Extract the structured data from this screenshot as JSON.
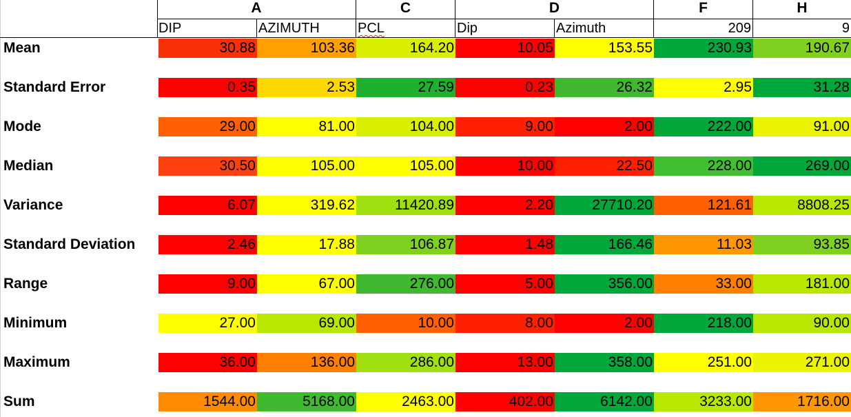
{
  "groups": [
    "A",
    "C",
    "D",
    "F",
    "H"
  ],
  "columns": [
    "DIP",
    "AZIMUTH",
    "PCL",
    "Dip",
    "Azimuth",
    "209",
    "9"
  ],
  "colors": {
    "red": "#ff0000",
    "orange_red": "#ff4000",
    "orange": "#ff8000",
    "amber": "#ffc000",
    "yellow": "#ffff00",
    "lime": "#b9e800",
    "light_green": "#80d020",
    "green": "#40b830",
    "dark_green": "#00a83c",
    "spellcheck_underline": "#e0201b"
  },
  "rows": [
    {
      "label": "Mean",
      "values": [
        "30.88",
        "103.36",
        "164.20",
        "10.05",
        "153.55",
        "230.93",
        "190.67"
      ],
      "colors": [
        "#f83008",
        "#ffa000",
        "#d8f000",
        "#ff0000",
        "#ffff00",
        "#00a83c",
        "#80d020"
      ]
    },
    {
      "label": "Standard Error",
      "values": [
        "0.35",
        "2.53",
        "27.59",
        "0.23",
        "26.32",
        "2.95",
        "31.28"
      ],
      "colors": [
        "#ff0000",
        "#ffd800",
        "#20b030",
        "#ff0000",
        "#40b830",
        "#ffff00",
        "#00a83c"
      ]
    },
    {
      "label": "Mode",
      "values": [
        "29.00",
        "81.00",
        "104.00",
        "9.00",
        "2.00",
        "222.00",
        "91.00"
      ],
      "colors": [
        "#ff6000",
        "#ffff00",
        "#d8f000",
        "#ff2000",
        "#ff0000",
        "#00a83c",
        "#eaf400"
      ]
    },
    {
      "label": "Median",
      "values": [
        "30.50",
        "105.00",
        "105.00",
        "10.00",
        "22.50",
        "228.00",
        "269.00"
      ],
      "colors": [
        "#ff4010",
        "#ffff00",
        "#ffff00",
        "#ff0000",
        "#ff2000",
        "#40c030",
        "#00a83c"
      ]
    },
    {
      "label": "Variance",
      "values": [
        "6.07",
        "319.62",
        "11420.89",
        "2.20",
        "27710.20",
        "121.61",
        "8808.25"
      ],
      "colors": [
        "#ff0000",
        "#ffff00",
        "#a0e010",
        "#ff0000",
        "#00a83c",
        "#ff6000",
        "#b9e800"
      ]
    },
    {
      "label": "Standard Deviation",
      "values": [
        "2.46",
        "17.88",
        "106.87",
        "1.48",
        "166.46",
        "11.03",
        "93.85"
      ],
      "colors": [
        "#ff0000",
        "#ffff00",
        "#80d020",
        "#ff0000",
        "#00a83c",
        "#ff9800",
        "#80d020"
      ]
    },
    {
      "label": "Range",
      "values": [
        "9.00",
        "67.00",
        "276.00",
        "5.00",
        "356.00",
        "33.00",
        "181.00"
      ],
      "colors": [
        "#ff0000",
        "#ffff00",
        "#40b830",
        "#ff0000",
        "#00a83c",
        "#ff8000",
        "#b9e800"
      ]
    },
    {
      "label": "Minimum",
      "values": [
        "27.00",
        "69.00",
        "10.00",
        "8.00",
        "2.00",
        "218.00",
        "90.00"
      ],
      "colors": [
        "#ffff00",
        "#b9e800",
        "#ff6000",
        "#ff2000",
        "#ff0000",
        "#00a83c",
        "#b9e800"
      ]
    },
    {
      "label": "Maximum",
      "values": [
        "36.00",
        "136.00",
        "286.00",
        "13.00",
        "358.00",
        "251.00",
        "271.00"
      ],
      "colors": [
        "#ff0000",
        "#ff8000",
        "#a0e010",
        "#ff0000",
        "#00a83c",
        "#ffff00",
        "#eaf400"
      ]
    },
    {
      "label": "Sum",
      "values": [
        "1544.00",
        "5168.00",
        "2463.00",
        "402.00",
        "6142.00",
        "3233.00",
        "1716.00"
      ],
      "colors": [
        "#ff8c00",
        "#40b830",
        "#ffff00",
        "#ff0000",
        "#00a83c",
        "#b9e800",
        "#ff9800"
      ]
    }
  ]
}
